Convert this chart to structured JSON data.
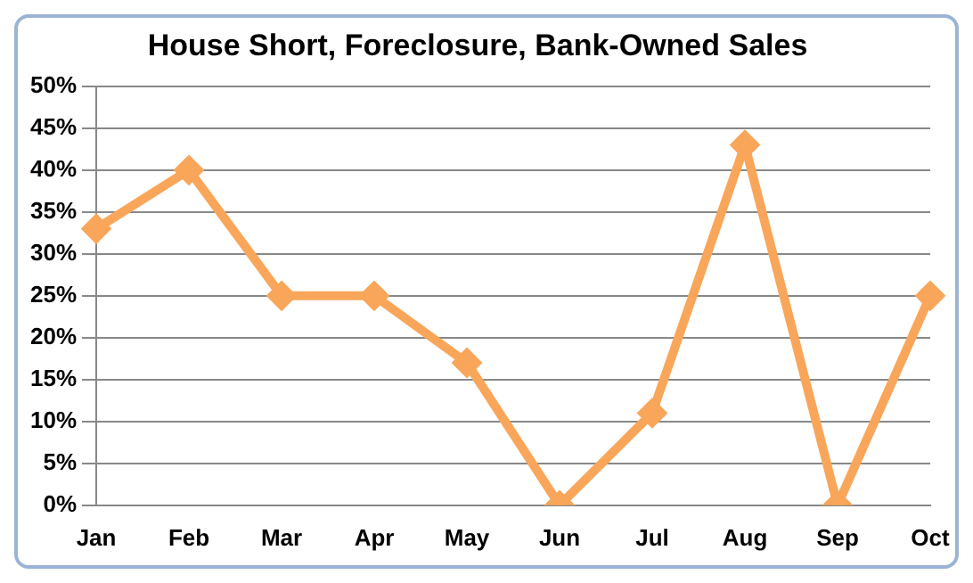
{
  "chart_data": {
    "type": "line",
    "title": "House Short, Foreclosure, Bank-Owned Sales",
    "categories": [
      "Jan",
      "Feb",
      "Mar",
      "Apr",
      "May",
      "Jun",
      "Jul",
      "Aug",
      "Sep",
      "Oct"
    ],
    "series": [
      {
        "color": "#f9a65a",
        "values": [
          33,
          40,
          25,
          25,
          17,
          0,
          11,
          43,
          0,
          25
        ]
      }
    ],
    "ylim": [
      0,
      50
    ],
    "yticks": [
      {
        "value": 0,
        "label": "0%"
      },
      {
        "value": 5,
        "label": "5%"
      },
      {
        "value": 10,
        "label": "10%"
      },
      {
        "value": 15,
        "label": "15%"
      },
      {
        "value": 20,
        "label": "20%"
      },
      {
        "value": 25,
        "label": "25%"
      },
      {
        "value": 30,
        "label": "30%"
      },
      {
        "value": 35,
        "label": "35%"
      },
      {
        "value": 40,
        "label": "40%"
      },
      {
        "value": 45,
        "label": "45%"
      },
      {
        "value": 50,
        "label": "50%"
      }
    ],
    "grid": "y",
    "legend": false,
    "marker": "diamond",
    "line_style": "solid"
  }
}
